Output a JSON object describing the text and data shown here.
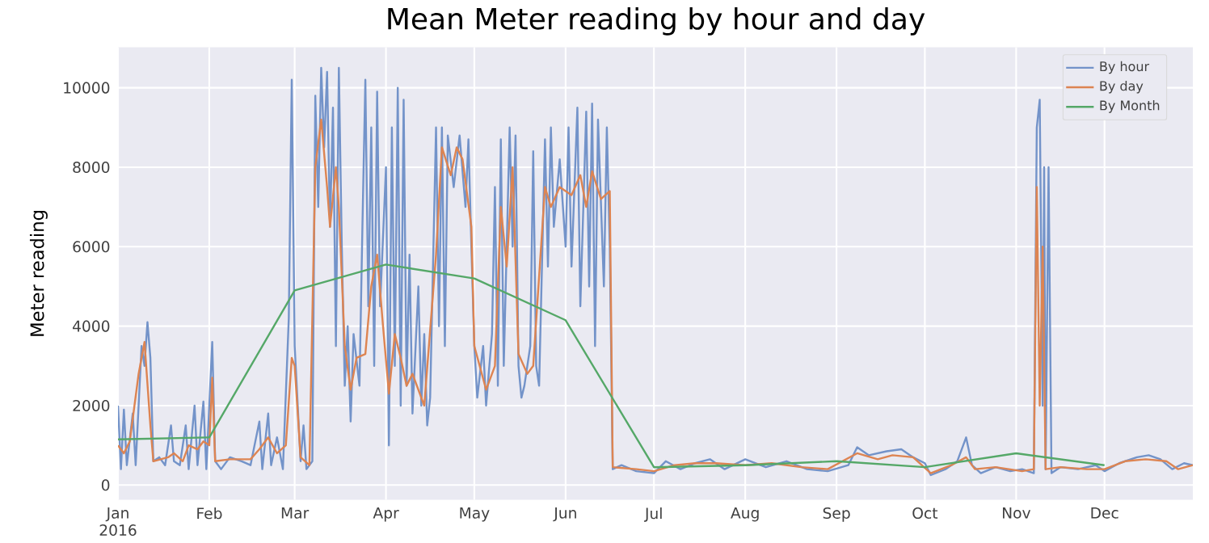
{
  "chart_data": {
    "type": "line",
    "title": "Mean Meter reading by hour and day",
    "ylabel": "Meter reading",
    "xlim": [
      "2016-01-01",
      "2016-12-31"
    ],
    "xticks": [
      {
        "value": "2016-01-01",
        "label": "Jan 2016"
      },
      {
        "value": "2016-02-01",
        "label": "Feb"
      },
      {
        "value": "2016-03-01",
        "label": "Mar"
      },
      {
        "value": "2016-04-01",
        "label": "Apr"
      },
      {
        "value": "2016-05-01",
        "label": "May"
      },
      {
        "value": "2016-06-01",
        "label": "Jun"
      },
      {
        "value": "2016-07-01",
        "label": "Jul"
      },
      {
        "value": "2016-08-01",
        "label": "Aug"
      },
      {
        "value": "2016-09-01",
        "label": "Sep"
      },
      {
        "value": "2016-10-01",
        "label": "Oct"
      },
      {
        "value": "2016-11-01",
        "label": "Nov"
      },
      {
        "value": "2016-12-01",
        "label": "Dec"
      }
    ],
    "ylim": [
      -370,
      11020
    ],
    "yticks": [
      0,
      2000,
      4000,
      6000,
      8000,
      10000
    ],
    "grid": true,
    "legend": "top right",
    "marker": "none",
    "line_style": "solid",
    "series": [
      {
        "name": "By hour",
        "color": "#7393c9",
        "x": [
          "2016-01-01",
          "2016-01-02",
          "2016-01-03",
          "2016-01-04",
          "2016-01-06",
          "2016-01-07",
          "2016-01-09",
          "2016-01-10",
          "2016-01-11",
          "2016-01-12",
          "2016-01-13",
          "2016-01-15",
          "2016-01-17",
          "2016-01-19",
          "2016-01-20",
          "2016-01-22",
          "2016-01-24",
          "2016-01-25",
          "2016-01-27",
          "2016-01-28",
          "2016-01-30",
          "2016-01-31",
          "2016-02-02",
          "2016-02-03",
          "2016-02-05",
          "2016-02-08",
          "2016-02-12",
          "2016-02-15",
          "2016-02-18",
          "2016-02-19",
          "2016-02-21",
          "2016-02-22",
          "2016-02-24",
          "2016-02-26",
          "2016-02-28",
          "2016-02-29",
          "2016-03-01",
          "2016-03-03",
          "2016-03-04",
          "2016-03-05",
          "2016-03-07",
          "2016-03-08",
          "2016-03-09",
          "2016-03-10",
          "2016-03-11",
          "2016-03-12",
          "2016-03-13",
          "2016-03-14",
          "2016-03-15",
          "2016-03-16",
          "2016-03-17",
          "2016-03-18",
          "2016-03-19",
          "2016-03-20",
          "2016-03-21",
          "2016-03-23",
          "2016-03-24",
          "2016-03-25",
          "2016-03-26",
          "2016-03-27",
          "2016-03-28",
          "2016-03-29",
          "2016-03-30",
          "2016-04-01",
          "2016-04-02",
          "2016-04-03",
          "2016-04-04",
          "2016-04-05",
          "2016-04-06",
          "2016-04-07",
          "2016-04-08",
          "2016-04-09",
          "2016-04-10",
          "2016-04-12",
          "2016-04-13",
          "2016-04-14",
          "2016-04-15",
          "2016-04-16",
          "2016-04-18",
          "2016-04-19",
          "2016-04-20",
          "2016-04-21",
          "2016-04-22",
          "2016-04-24",
          "2016-04-26",
          "2016-04-28",
          "2016-04-29",
          "2016-04-30",
          "2016-05-01",
          "2016-05-02",
          "2016-05-04",
          "2016-05-05",
          "2016-05-07",
          "2016-05-08",
          "2016-05-09",
          "2016-05-10",
          "2016-05-11",
          "2016-05-13",
          "2016-05-14",
          "2016-05-15",
          "2016-05-16",
          "2016-05-17",
          "2016-05-18",
          "2016-05-20",
          "2016-05-21",
          "2016-05-22",
          "2016-05-23",
          "2016-05-25",
          "2016-05-26",
          "2016-05-27",
          "2016-05-28",
          "2016-05-30",
          "2016-06-01",
          "2016-06-02",
          "2016-06-03",
          "2016-06-05",
          "2016-06-06",
          "2016-06-08",
          "2016-06-09",
          "2016-06-10",
          "2016-06-11",
          "2016-06-12",
          "2016-06-14",
          "2016-06-15",
          "2016-06-16",
          "2016-06-17",
          "2016-06-20",
          "2016-06-25",
          "2016-07-01",
          "2016-07-05",
          "2016-07-10",
          "2016-07-15",
          "2016-07-20",
          "2016-07-25",
          "2016-08-01",
          "2016-08-08",
          "2016-08-15",
          "2016-08-22",
          "2016-08-29",
          "2016-09-05",
          "2016-09-08",
          "2016-09-12",
          "2016-09-18",
          "2016-09-23",
          "2016-09-27",
          "2016-10-01",
          "2016-10-03",
          "2016-10-08",
          "2016-10-12",
          "2016-10-15",
          "2016-10-17",
          "2016-10-20",
          "2016-10-25",
          "2016-10-30",
          "2016-11-03",
          "2016-11-07",
          "2016-11-08",
          "2016-11-09",
          "2016-11-10",
          "2016-11-10T12:00",
          "2016-11-11",
          "2016-11-12",
          "2016-11-13",
          "2016-11-16",
          "2016-11-22",
          "2016-11-28",
          "2016-12-01",
          "2016-12-06",
          "2016-12-12",
          "2016-12-16",
          "2016-12-20",
          "2016-12-24",
          "2016-12-28",
          "2016-12-31"
        ],
        "values": [
          2000,
          400,
          1900,
          500,
          1800,
          500,
          3500,
          3000,
          4100,
          3200,
          600,
          700,
          500,
          1500,
          600,
          500,
          1500,
          400,
          2000,
          500,
          2100,
          400,
          3600,
          600,
          400,
          700,
          600,
          500,
          1600,
          400,
          1800,
          500,
          1200,
          400,
          4200,
          10200,
          3500,
          600,
          1500,
          400,
          600,
          9800,
          7000,
          10500,
          8500,
          10400,
          6500,
          9500,
          3500,
          10500,
          6000,
          2500,
          4000,
          1600,
          3800,
          2500,
          6500,
          10200,
          4500,
          9000,
          3000,
          9900,
          4500,
          8000,
          1000,
          9000,
          3000,
          10000,
          2000,
          9700,
          2500,
          5800,
          1800,
          5000,
          2000,
          3800,
          1500,
          2200,
          9000,
          4000,
          9000,
          3500,
          8800,
          7500,
          8800,
          7000,
          8700,
          6000,
          3500,
          2200,
          3500,
          2000,
          3800,
          7500,
          2500,
          8700,
          3000,
          9000,
          6000,
          8800,
          3000,
          2200,
          2500,
          3500,
          8400,
          3000,
          2500,
          8700,
          5500,
          9000,
          6500,
          8200,
          6000,
          9000,
          5500,
          9500,
          4500,
          9400,
          5000,
          9600,
          3500,
          9200,
          5000,
          9000,
          6000,
          400,
          500,
          350,
          300,
          600,
          400,
          550,
          650,
          400,
          650,
          450,
          600,
          400,
          350,
          500,
          950,
          750,
          850,
          900,
          700,
          550,
          250,
          400,
          600,
          1200,
          500,
          300,
          450,
          350,
          400,
          300,
          9000,
          9700,
          2000,
          8000,
          400,
          8000,
          300,
          450,
          400,
          500,
          350,
          550,
          700,
          750,
          650,
          400,
          550,
          500
        ]
      },
      {
        "name": "By day",
        "color": "#dd8452",
        "x": [
          "2016-01-01",
          "2016-01-03",
          "2016-01-05",
          "2016-01-08",
          "2016-01-10",
          "2016-01-12",
          "2016-01-13",
          "2016-01-18",
          "2016-01-20",
          "2016-01-23",
          "2016-01-25",
          "2016-01-28",
          "2016-01-30",
          "2016-02-01",
          "2016-02-02",
          "2016-02-03",
          "2016-02-08",
          "2016-02-15",
          "2016-02-18",
          "2016-02-21",
          "2016-02-24",
          "2016-02-27",
          "2016-02-29",
          "2016-03-01",
          "2016-03-03",
          "2016-03-06",
          "2016-03-08",
          "2016-03-10",
          "2016-03-12",
          "2016-03-13",
          "2016-03-15",
          "2016-03-16",
          "2016-03-18",
          "2016-03-20",
          "2016-03-22",
          "2016-03-25",
          "2016-03-27",
          "2016-03-29",
          "2016-03-31",
          "2016-04-02",
          "2016-04-04",
          "2016-04-06",
          "2016-04-08",
          "2016-04-10",
          "2016-04-14",
          "2016-04-18",
          "2016-04-20",
          "2016-04-23",
          "2016-04-25",
          "2016-04-27",
          "2016-04-30",
          "2016-05-01",
          "2016-05-05",
          "2016-05-08",
          "2016-05-10",
          "2016-05-12",
          "2016-05-14",
          "2016-05-16",
          "2016-05-19",
          "2016-05-21",
          "2016-05-25",
          "2016-05-27",
          "2016-05-30",
          "2016-06-03",
          "2016-06-06",
          "2016-06-08",
          "2016-06-10",
          "2016-06-13",
          "2016-06-16",
          "2016-06-17",
          "2016-06-25",
          "2016-07-01",
          "2016-07-08",
          "2016-07-15",
          "2016-07-22",
          "2016-08-01",
          "2016-08-10",
          "2016-08-20",
          "2016-08-29",
          "2016-09-08",
          "2016-09-15",
          "2016-09-20",
          "2016-09-27",
          "2016-10-03",
          "2016-10-10",
          "2016-10-15",
          "2016-10-18",
          "2016-10-25",
          "2016-11-03",
          "2016-11-07",
          "2016-11-08",
          "2016-11-09",
          "2016-11-10",
          "2016-11-11",
          "2016-11-16",
          "2016-11-25",
          "2016-12-01",
          "2016-12-08",
          "2016-12-15",
          "2016-12-22",
          "2016-12-26",
          "2016-12-31"
        ],
        "values": [
          1000,
          800,
          1100,
          2800,
          3600,
          1500,
          600,
          700,
          800,
          600,
          1000,
          900,
          1100,
          1000,
          2700,
          600,
          650,
          650,
          900,
          1200,
          800,
          1000,
          3200,
          3000,
          700,
          500,
          8000,
          9200,
          7500,
          6500,
          8000,
          7000,
          3500,
          2400,
          3200,
          3300,
          5000,
          5800,
          4000,
          2300,
          3800,
          3200,
          2500,
          2800,
          2000,
          5800,
          8500,
          7800,
          8500,
          8200,
          6500,
          3500,
          2400,
          3000,
          7000,
          5500,
          8000,
          3300,
          2800,
          3000,
          7500,
          7000,
          7500,
          7300,
          7800,
          7000,
          7900,
          7200,
          7400,
          450,
          400,
          350,
          500,
          550,
          550,
          500,
          550,
          450,
          400,
          800,
          650,
          750,
          700,
          300,
          500,
          700,
          400,
          450,
          350,
          400,
          7500,
          2000,
          6000,
          400,
          450,
          400,
          400,
          600,
          650,
          600,
          400,
          500
        ]
      },
      {
        "name": "By Month",
        "color": "#55a868",
        "x": [
          "2016-01-01",
          "2016-02-01",
          "2016-03-01",
          "2016-04-01",
          "2016-05-01",
          "2016-06-01",
          "2016-07-01",
          "2016-08-01",
          "2016-09-01",
          "2016-10-01",
          "2016-11-01",
          "2016-12-01"
        ],
        "values": [
          1150,
          1200,
          4900,
          5550,
          5200,
          4150,
          450,
          500,
          600,
          450,
          800,
          500
        ]
      }
    ]
  }
}
